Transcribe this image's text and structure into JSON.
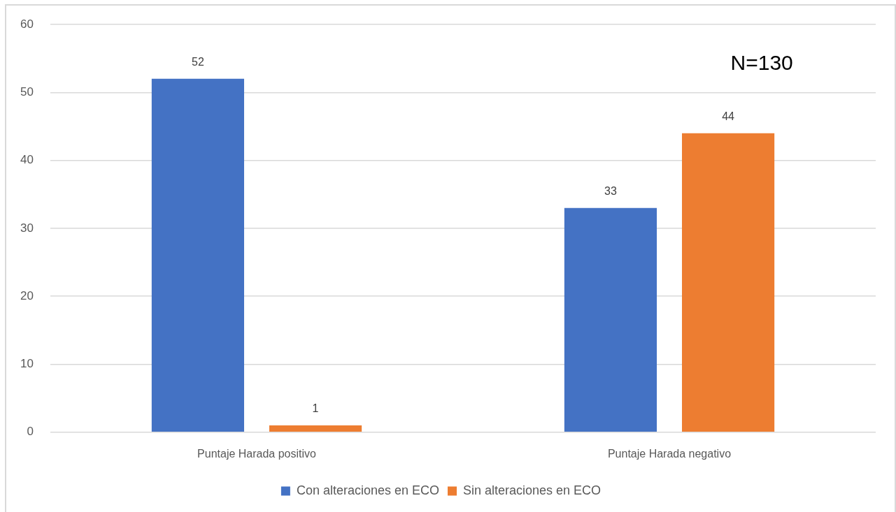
{
  "chart_data": {
    "type": "bar",
    "categories": [
      "Puntaje Harada positivo",
      "Puntaje Harada negativo"
    ],
    "series": [
      {
        "name": "Con alteraciones en ECO",
        "color": "#4472c4",
        "values": [
          52,
          33
        ]
      },
      {
        "name": "Sin alteraciones en ECO",
        "color": "#ed7d31",
        "values": [
          1,
          44
        ]
      }
    ],
    "ylim": [
      0,
      60
    ],
    "yticks": [
      0,
      10,
      20,
      30,
      40,
      50,
      60
    ],
    "grid": "y",
    "legend": "bottom",
    "data_labels": true,
    "annotations": [
      "N=130"
    ]
  }
}
